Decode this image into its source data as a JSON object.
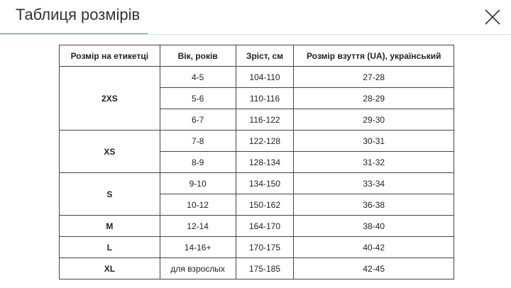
{
  "header": {
    "title": "Таблиця розмірів"
  },
  "table": {
    "columns": [
      "Розмір на етикетці",
      "Вік, років",
      "Зріст, см",
      "Розмір взуття (UA), український"
    ],
    "groups": [
      {
        "label": "2XS",
        "rows": [
          [
            "4-5",
            "104-110",
            "27-28"
          ],
          [
            "5-6",
            "110-116",
            "28-29"
          ],
          [
            "6-7",
            "116-122",
            "29-30"
          ]
        ]
      },
      {
        "label": "XS",
        "rows": [
          [
            "7-8",
            "122-128",
            "30-31"
          ],
          [
            "8-9",
            "128-134",
            "31-32"
          ]
        ]
      },
      {
        "label": "S",
        "rows": [
          [
            "9-10",
            "134-150",
            "33-34"
          ],
          [
            "10-12",
            "150-162",
            "36-38"
          ]
        ]
      },
      {
        "label": "M",
        "rows": [
          [
            "12-14",
            "164-170",
            "38-40"
          ]
        ]
      },
      {
        "label": "L",
        "rows": [
          [
            "14-16+",
            "170-175",
            "40-42"
          ]
        ]
      },
      {
        "label": "XL",
        "rows": [
          [
            "для взрослых",
            "175-185",
            "42-45"
          ]
        ]
      }
    ]
  }
}
